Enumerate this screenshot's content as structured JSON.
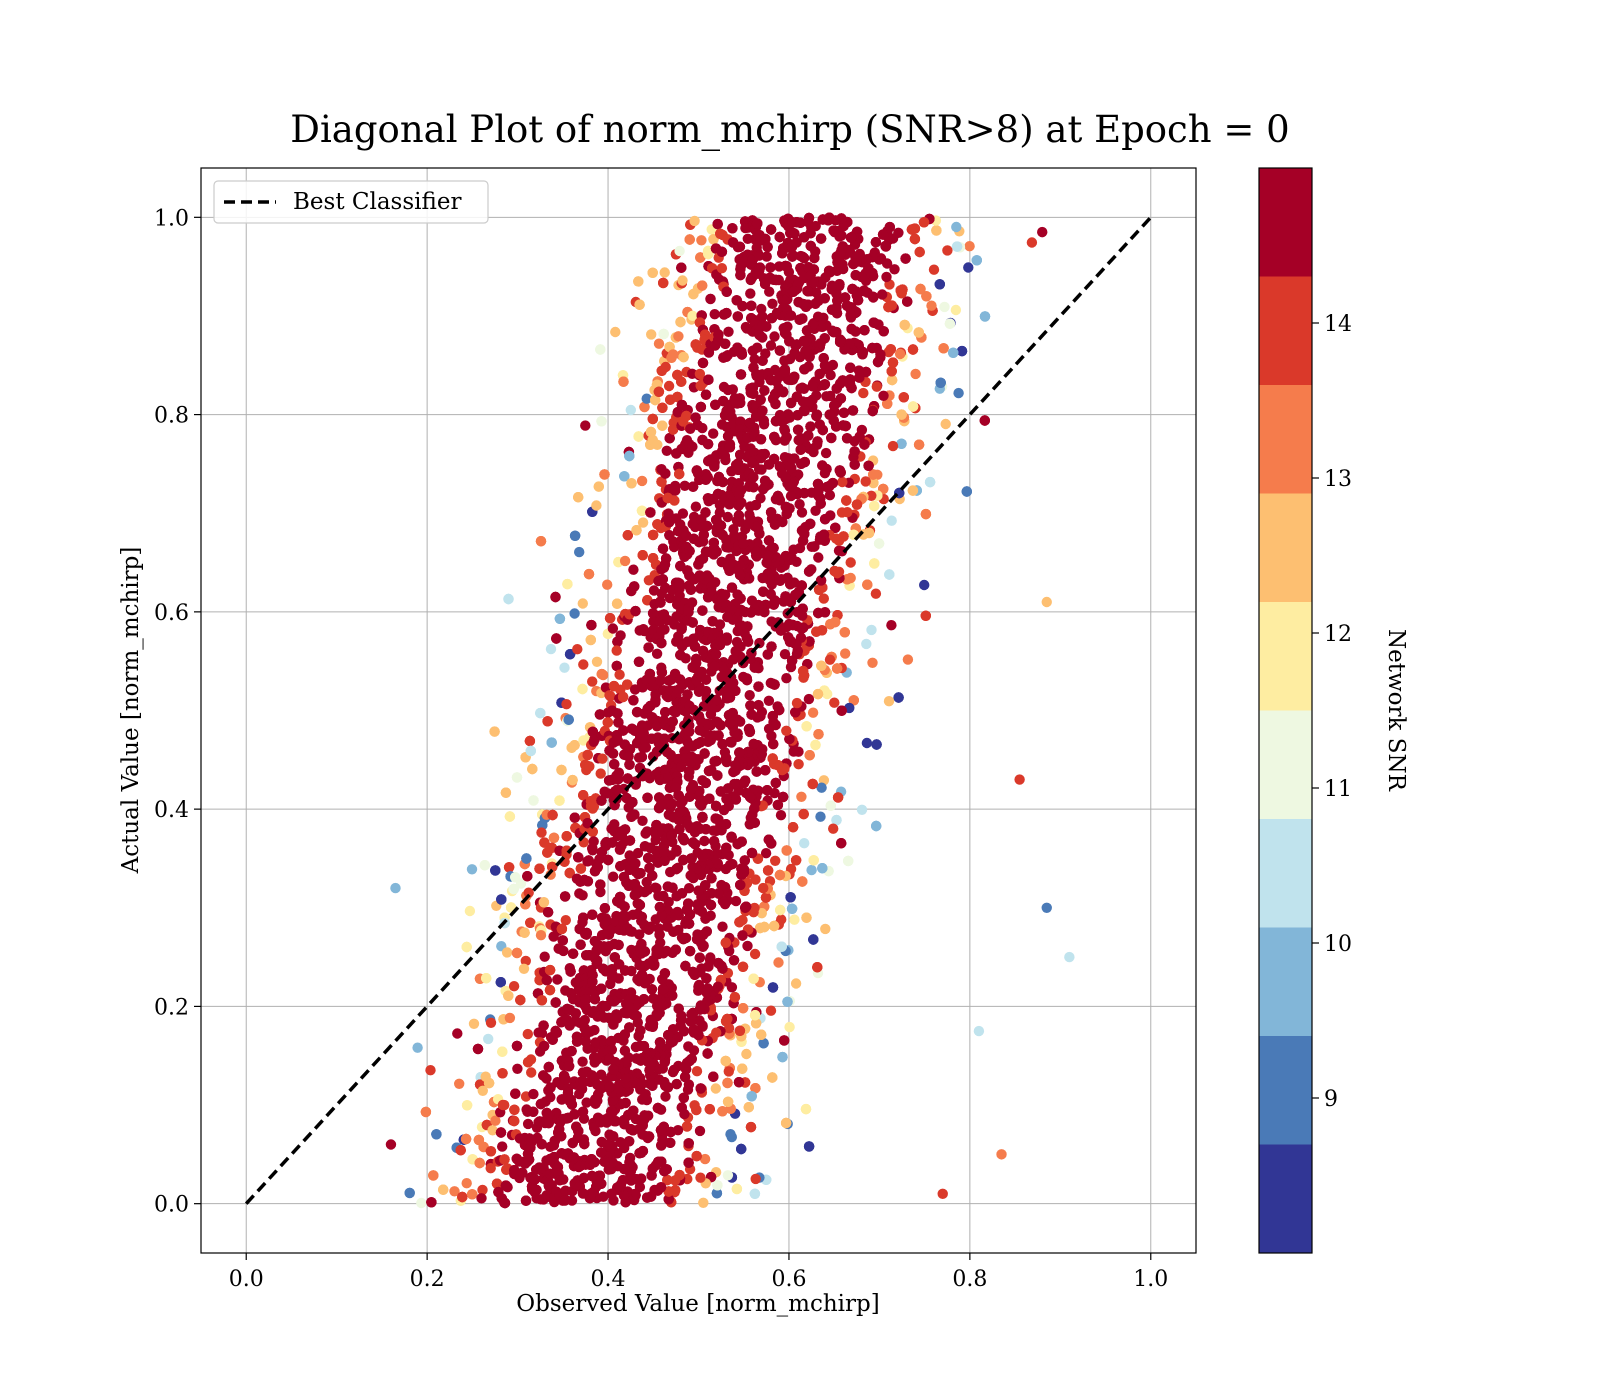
{
  "chart_data": {
    "type": "scatter",
    "title": "Diagonal Plot of norm_mchirp (SNR>8) at Epoch = 0",
    "xlabel": "Observed Value [norm_mchirp]",
    "ylabel": "Actual Value [norm_mchirp]",
    "xlim": [
      -0.05,
      1.05
    ],
    "ylim": [
      -0.05,
      1.05
    ],
    "xticks": [
      "0.0",
      "0.2",
      "0.4",
      "0.6",
      "0.8",
      "1.0"
    ],
    "yticks": [
      "0.0",
      "0.2",
      "0.4",
      "0.6",
      "0.8",
      "1.0"
    ],
    "grid": true,
    "legend": {
      "placement": "top-left",
      "entries": [
        {
          "label": "Best Classifier",
          "style": "dashed",
          "color": "#000000"
        }
      ]
    },
    "series": [
      {
        "name": "Best Classifier",
        "kind": "line",
        "style": "dashed",
        "x": [
          0.0,
          1.0
        ],
        "y": [
          0.0,
          1.0
        ]
      }
    ],
    "scatter_summary": {
      "description_values_only": true,
      "y_range": [
        0.0,
        1.0
      ],
      "observed_center_at_y0": 0.37,
      "observed_center_at_y1": 0.64,
      "observed_spread": 0.13,
      "color_by": "Network SNR",
      "sample_points": [
        {
          "x": 0.88,
          "y": 0.985,
          "snr": 14.5
        },
        {
          "x": 0.91,
          "y": 0.25,
          "snr": 10.4
        },
        {
          "x": 0.885,
          "y": 0.61,
          "snr": 12.3
        },
        {
          "x": 0.885,
          "y": 0.3,
          "snr": 9.0
        },
        {
          "x": 0.165,
          "y": 0.32,
          "snr": 9.8
        },
        {
          "x": 0.16,
          "y": 0.06,
          "snr": 14.5
        },
        {
          "x": 0.835,
          "y": 0.05,
          "snr": 13.3
        },
        {
          "x": 0.855,
          "y": 0.43,
          "snr": 13.9
        },
        {
          "x": 0.77,
          "y": 0.01,
          "snr": 13.9
        },
        {
          "x": 0.81,
          "y": 0.175,
          "snr": 10.5
        }
      ]
    },
    "colorbar": {
      "label": "Network SNR",
      "range": [
        8.0,
        15.0
      ],
      "ticks": [
        "9",
        "10",
        "11",
        "12",
        "13",
        "14"
      ],
      "tick_values": [
        9,
        10,
        11,
        12,
        13,
        14
      ],
      "bins": [
        {
          "from": 8.0,
          "to": 8.7,
          "color": "#313695"
        },
        {
          "from": 8.7,
          "to": 9.4,
          "color": "#4a7ab7"
        },
        {
          "from": 9.4,
          "to": 10.1,
          "color": "#82b6d8"
        },
        {
          "from": 10.1,
          "to": 10.8,
          "color": "#c0e3ed"
        },
        {
          "from": 10.8,
          "to": 11.5,
          "color": "#eef8e1"
        },
        {
          "from": 11.5,
          "to": 12.2,
          "color": "#feeda1"
        },
        {
          "from": 12.2,
          "to": 12.9,
          "color": "#fdbf71"
        },
        {
          "from": 12.9,
          "to": 13.6,
          "color": "#f57c4c"
        },
        {
          "from": 13.6,
          "to": 14.3,
          "color": "#da392a"
        },
        {
          "from": 14.3,
          "to": 15.0,
          "color": "#a50026"
        }
      ]
    }
  }
}
